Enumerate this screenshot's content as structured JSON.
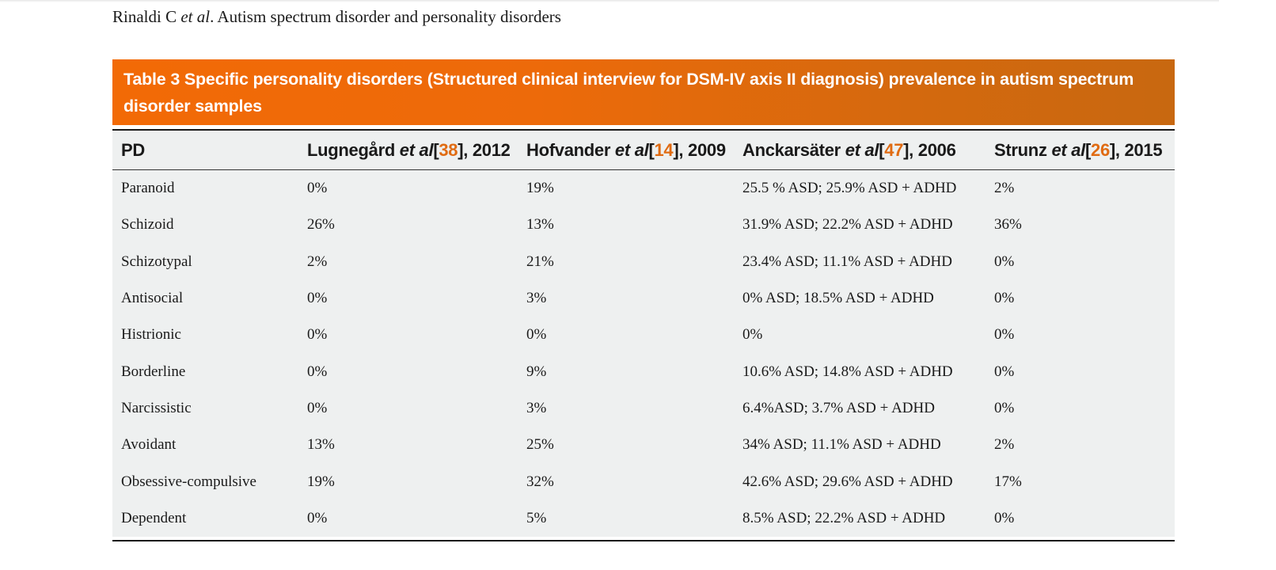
{
  "running_head": {
    "author": "Rinaldi C ",
    "etal": "et al",
    "rest": ". Autism spectrum disorder and personality disorders"
  },
  "caption": "Table 3 Specific personality disorders (Structured clinical interview for DSM-IV axis II diagnosis) prevalence in autism spectrum disorder samples",
  "headers": [
    {
      "plain": "PD"
    },
    {
      "author": "Lugnegård ",
      "etal": "et al",
      "ref_open": "[",
      "ref": "38",
      "ref_close": "], 2012"
    },
    {
      "author": "Hofvander ",
      "etal": "et al",
      "ref_open": "[",
      "ref": "14",
      "ref_close": "], 2009"
    },
    {
      "author": "Anckarsäter ",
      "etal": "et al",
      "ref_open": "[",
      "ref": "47",
      "ref_close": "], 2006"
    },
    {
      "author": "Strunz ",
      "etal": "et al",
      "ref_open": "[",
      "ref": "26",
      "ref_close": "], 2015"
    }
  ],
  "rows": [
    [
      "Paranoid",
      "0%",
      "19%",
      "25.5 % ASD; 25.9% ASD + ADHD",
      "2%"
    ],
    [
      "Schizoid",
      "26%",
      "13%",
      "31.9% ASD; 22.2% ASD + ADHD",
      "36%"
    ],
    [
      "Schizotypal",
      "2%",
      "21%",
      "23.4% ASD; 11.1% ASD + ADHD",
      "0%"
    ],
    [
      "Antisocial",
      "0%",
      "3%",
      "0% ASD; 18.5% ASD + ADHD",
      "0%"
    ],
    [
      "Histrionic",
      "0%",
      "0%",
      "0%",
      "0%"
    ],
    [
      "Borderline",
      "0%",
      "9%",
      "10.6% ASD; 14.8% ASD + ADHD",
      "0%"
    ],
    [
      "Narcissistic",
      "0%",
      "3%",
      "6.4%ASD; 3.7% ASD + ADHD",
      "0%"
    ],
    [
      "Avoidant",
      "13%",
      "25%",
      "34% ASD; 11.1% ASD + ADHD",
      "2%"
    ],
    [
      "Obsessive-compulsive",
      "19%",
      "32%",
      "42.6% ASD; 29.6% ASD + ADHD",
      "17%"
    ],
    [
      "Dependent",
      "0%",
      "5%",
      "8.5% ASD; 22.2% ASD + ADHD",
      "0%"
    ]
  ],
  "colors": {
    "caption_start": "#f26a06",
    "caption_end": "#c86810",
    "reference_link": "#e06b12",
    "table_bg": "#eef0f0"
  }
}
